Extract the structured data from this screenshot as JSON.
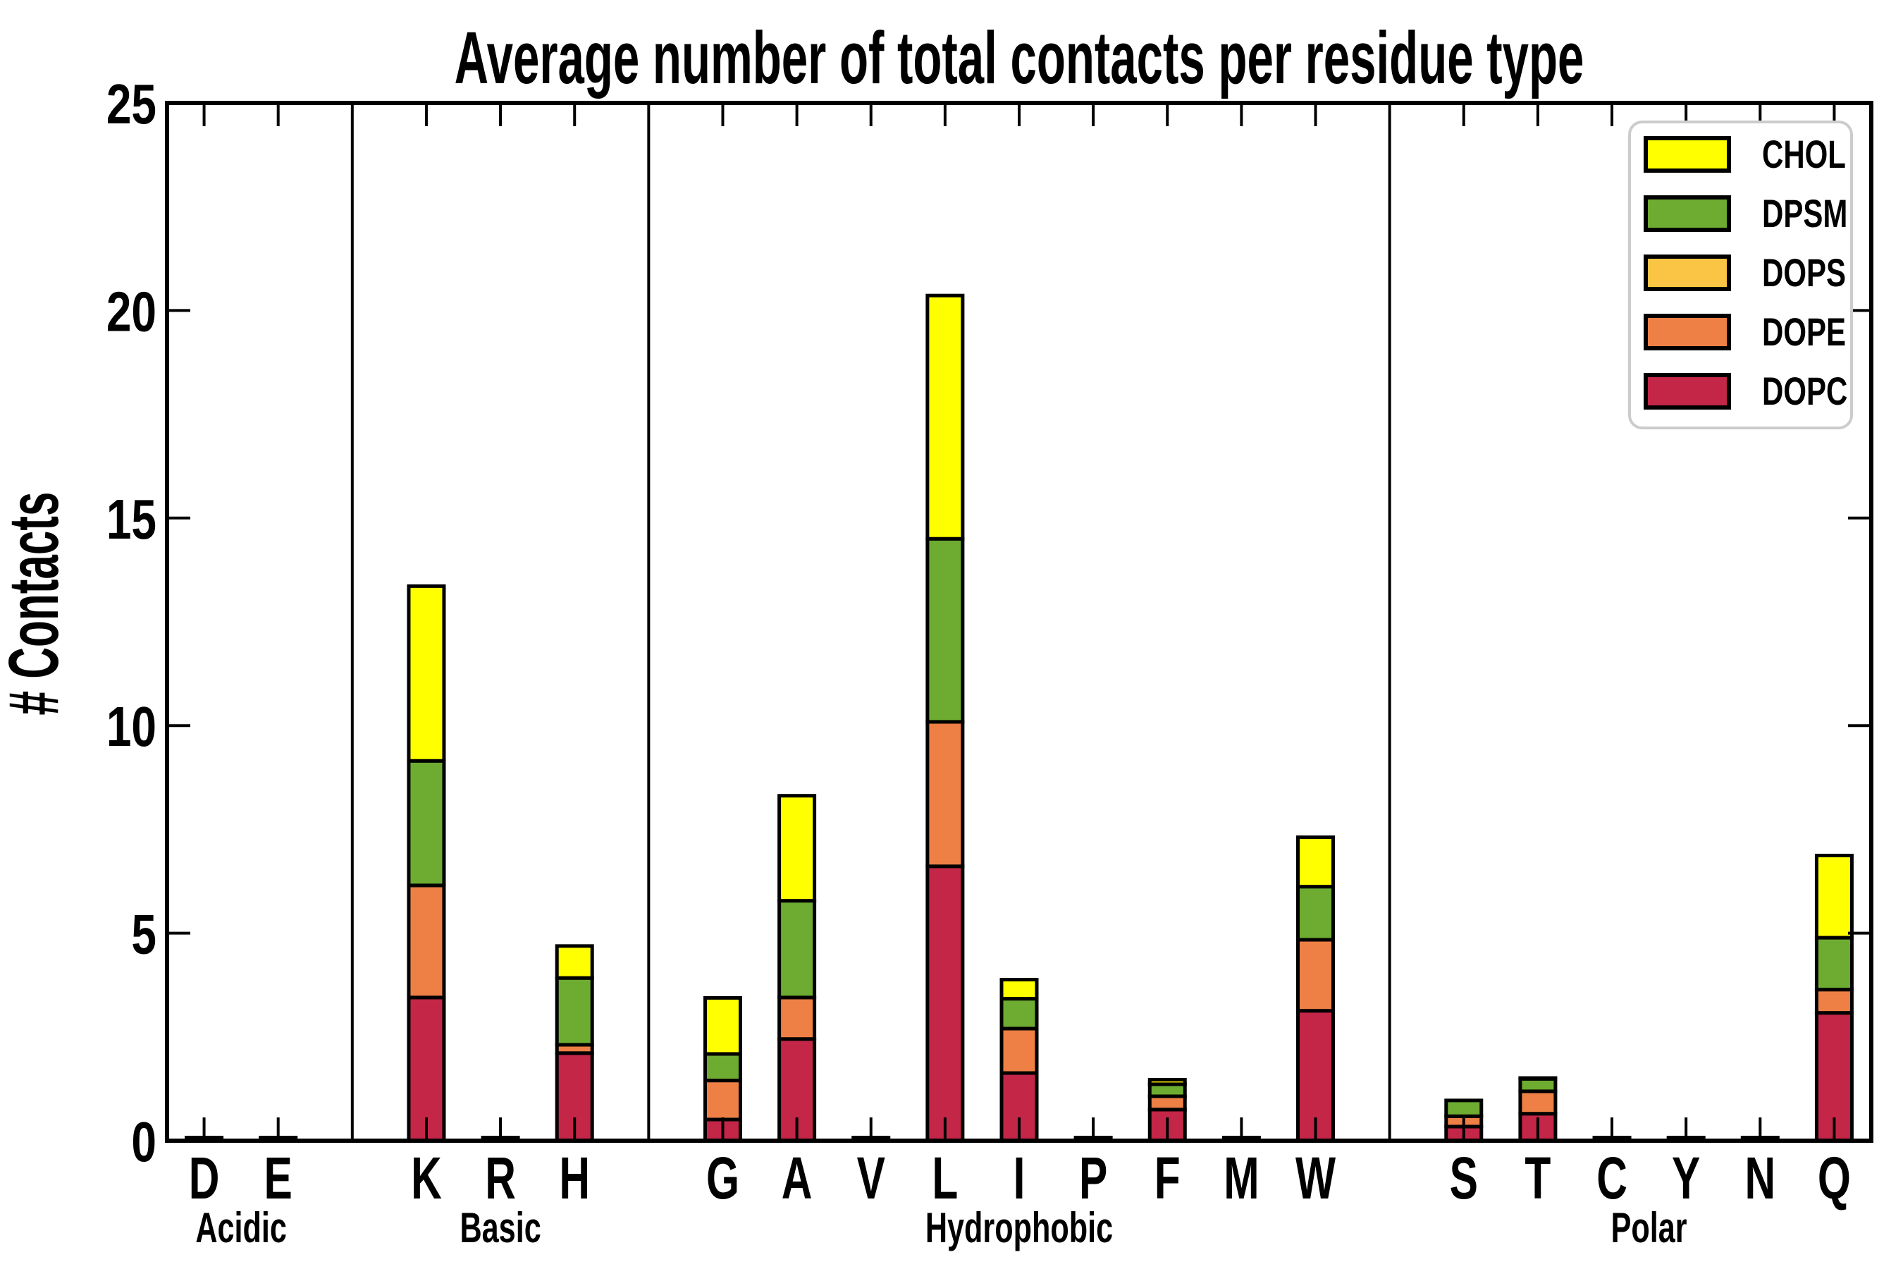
{
  "chart_data": {
    "type": "bar",
    "variant": "stacked-vertical",
    "title": "Average number of total contacts per residue type",
    "xlabel": "",
    "ylabel": "# Contacts",
    "ylim": [
      0,
      25
    ],
    "yticks": [
      0,
      5,
      10,
      15,
      20,
      25
    ],
    "grid": "off",
    "categories": [
      "D",
      "E",
      "K",
      "R",
      "H",
      "G",
      "A",
      "V",
      "L",
      "I",
      "P",
      "F",
      "M",
      "W",
      "S",
      "T",
      "C",
      "Y",
      "N",
      "Q"
    ],
    "groups": [
      {
        "label": "Acidic",
        "residues": [
          "D",
          "E"
        ]
      },
      {
        "label": "Basic",
        "residues": [
          "K",
          "R",
          "H"
        ]
      },
      {
        "label": "Hydrophobic",
        "residues": [
          "G",
          "A",
          "V",
          "L",
          "I",
          "P",
          "F",
          "M",
          "W"
        ]
      },
      {
        "label": "Polar",
        "residues": [
          "S",
          "T",
          "C",
          "Y",
          "N",
          "Q"
        ]
      }
    ],
    "series": [
      {
        "name": "DOPC",
        "values": [
          0,
          0,
          3.45,
          0,
          2.11,
          0.51,
          2.45,
          0,
          6.61,
          1.63,
          0,
          0.75,
          0,
          3.13,
          0.34,
          0.65,
          0,
          0,
          0,
          3.08
        ]
      },
      {
        "name": "DOPE",
        "values": [
          0,
          0,
          2.7,
          0,
          0.2,
          0.94,
          1.0,
          0,
          3.48,
          1.07,
          0,
          0.32,
          0,
          1.71,
          0.25,
          0.54,
          0,
          0,
          0,
          0.56
        ]
      },
      {
        "name": "DOPS",
        "values": [
          0,
          0,
          0,
          0,
          0,
          0,
          0,
          0,
          0,
          0,
          0,
          0,
          0,
          0,
          0,
          0,
          0,
          0,
          0,
          0
        ]
      },
      {
        "name": "DPSM",
        "values": [
          0,
          0,
          3.0,
          0,
          1.61,
          0.64,
          2.33,
          0,
          4.41,
          0.72,
          0,
          0.29,
          0,
          1.28,
          0.38,
          0.3,
          0,
          0,
          0,
          1.25
        ]
      },
      {
        "name": "CHOL",
        "values": [
          0,
          0,
          4.21,
          0,
          0.77,
          1.35,
          2.53,
          0,
          5.86,
          0.46,
          0,
          0.11,
          0,
          1.19,
          0,
          0.02,
          0,
          0,
          0,
          1.98
        ]
      }
    ],
    "totals": {
      "K": 13.36,
      "H": 4.69,
      "G": 3.44,
      "A": 8.31,
      "L": 20.36,
      "I": 3.88,
      "F": 1.47,
      "W": 7.31,
      "S": 0.97,
      "T": 1.51,
      "Q": 6.87
    },
    "colors": {
      "CHOL": "#ffff00",
      "DPSM": "#6dac31",
      "DOPS": "#fac544",
      "DOPE": "#ee8045",
      "DOPC": "#c42647",
      "bar_edge": "#000000",
      "axis": "#000000",
      "legend_border": "#cccccc"
    },
    "legend": {
      "position": "top-right",
      "items": [
        {
          "label": "CHOL",
          "color": "#ffff00"
        },
        {
          "label": "DPSM",
          "color": "#6dac31"
        },
        {
          "label": "DOPS",
          "color": "#fac544"
        },
        {
          "label": "DOPE",
          "color": "#ee8045"
        },
        {
          "label": "DOPC",
          "color": "#c42647"
        }
      ]
    }
  }
}
